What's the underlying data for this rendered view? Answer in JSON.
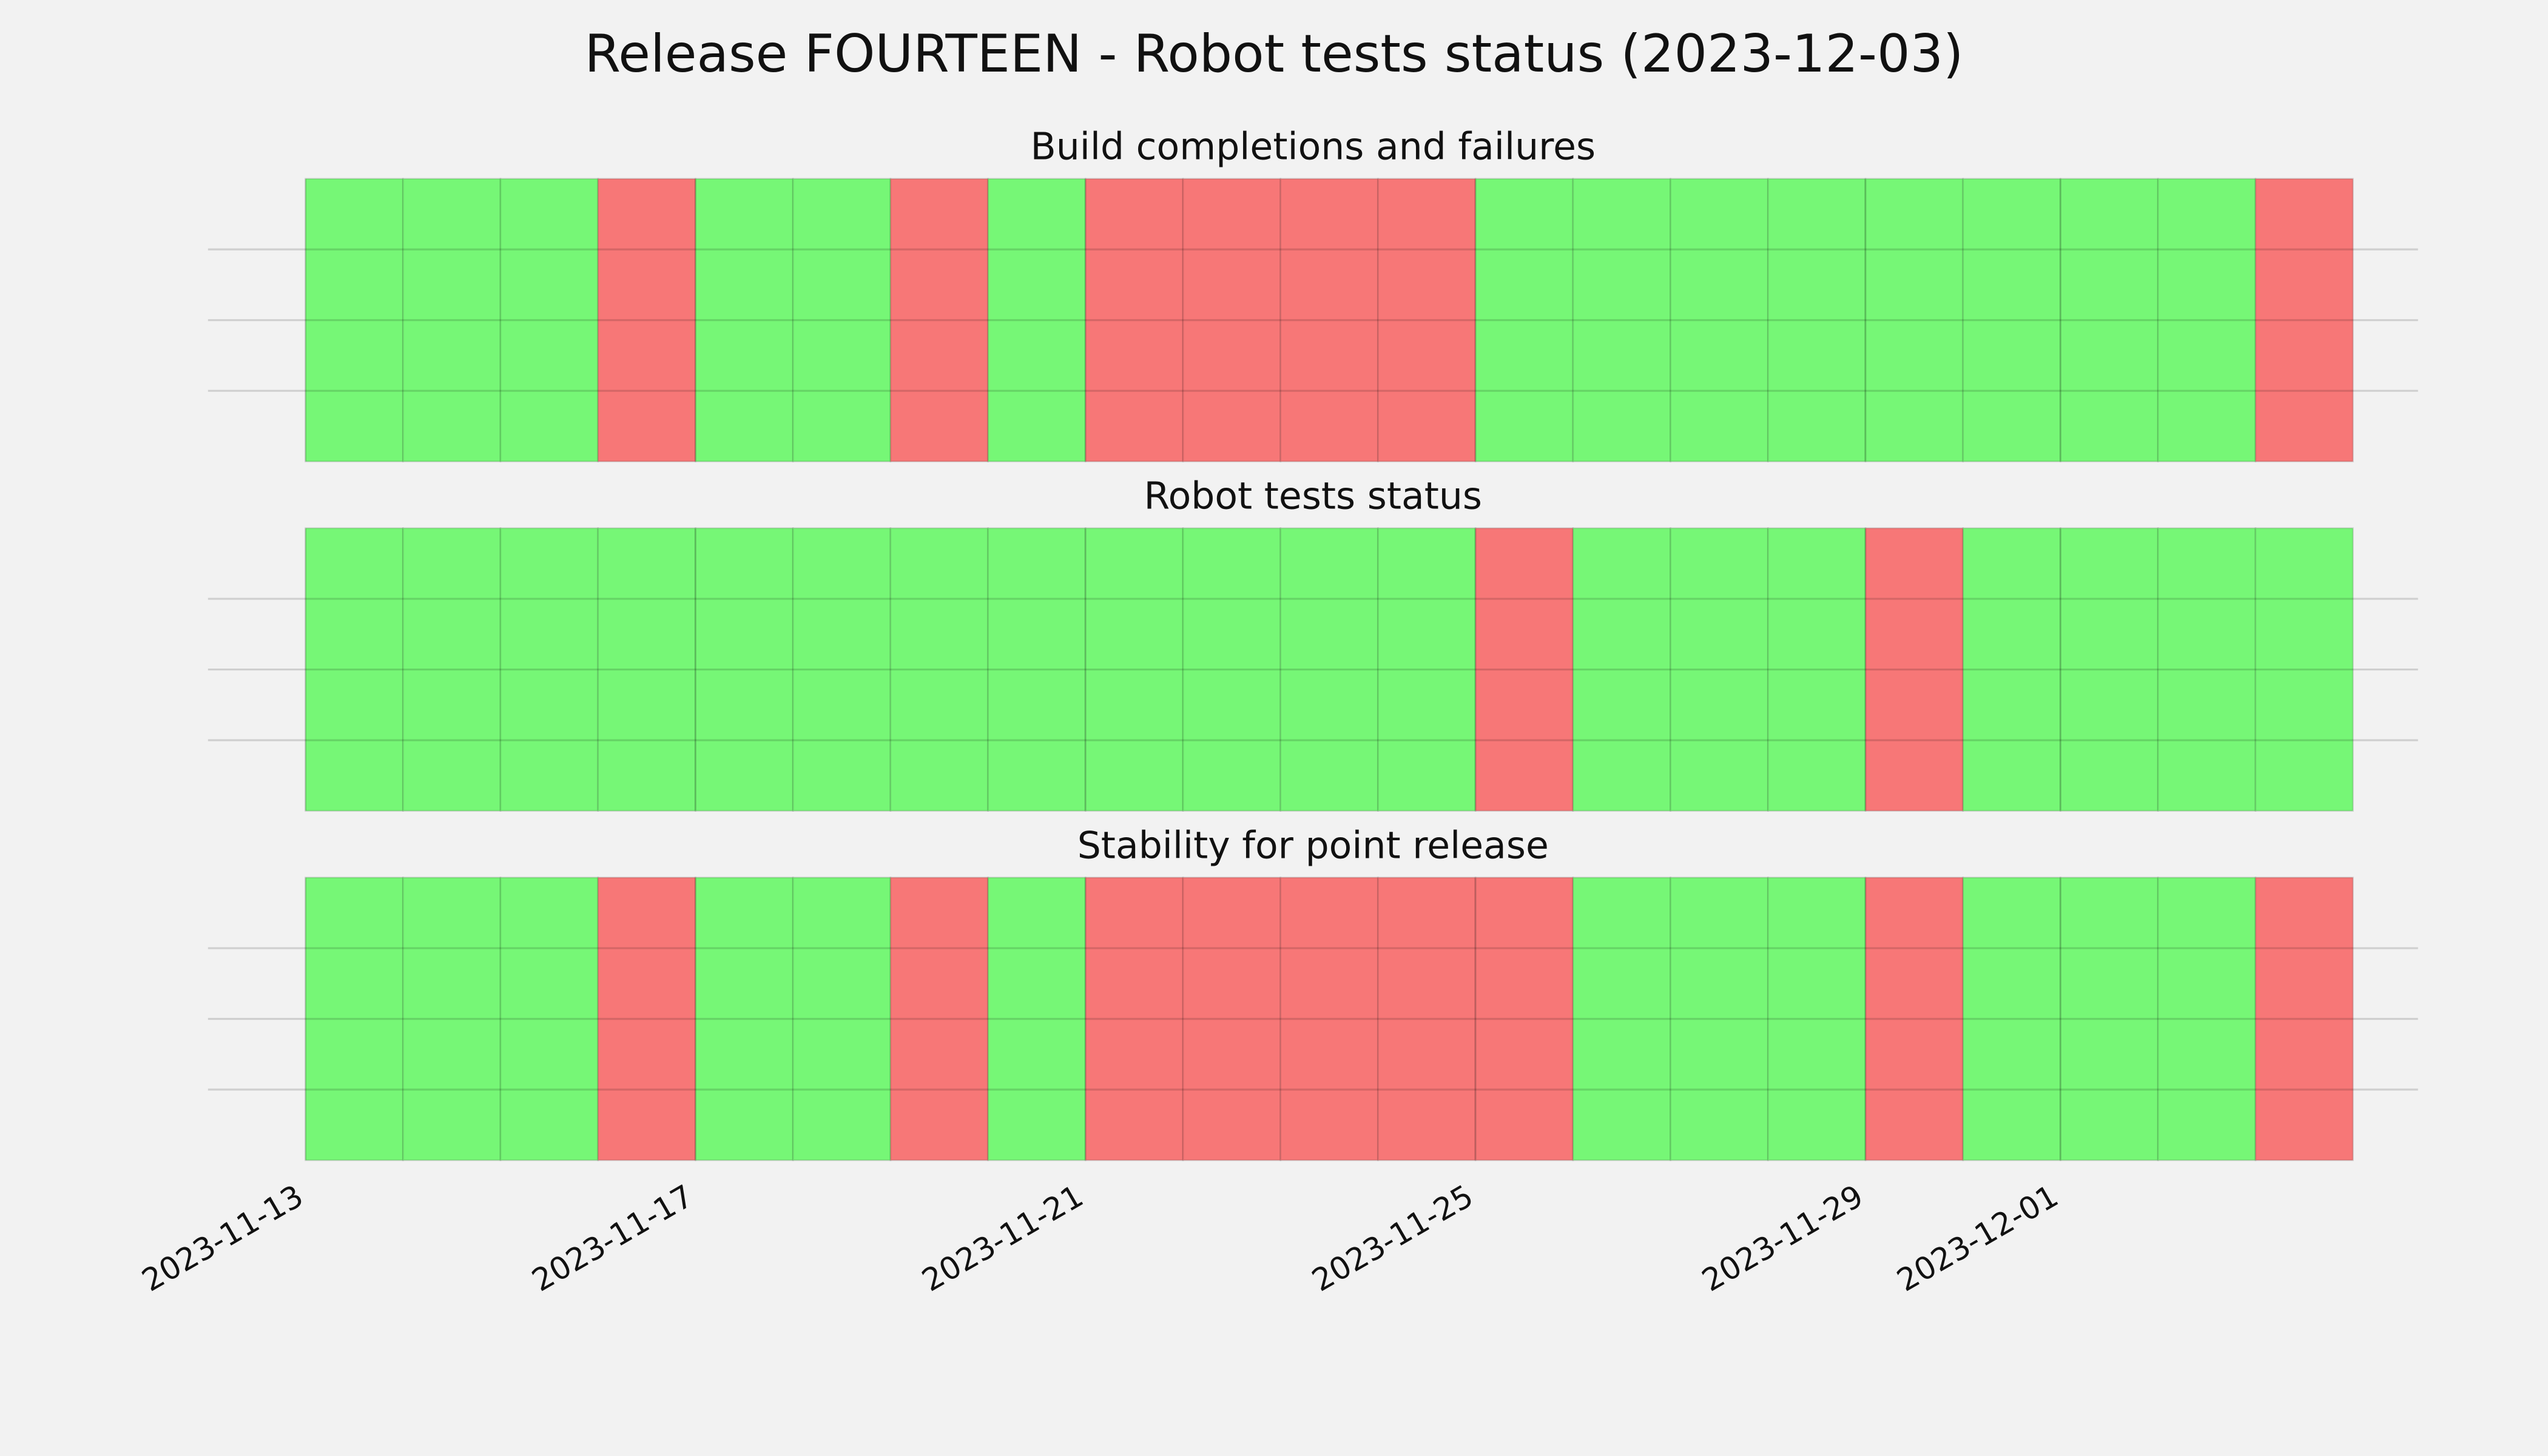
{
  "title": "Release FOURTEEN - Robot tests status (2023-12-03)",
  "chart_data": [
    {
      "type": "timeline",
      "title": "Build completions and failures",
      "x": [
        "2023-11-13",
        "2023-11-14",
        "2023-11-15",
        "2023-11-16",
        "2023-11-17",
        "2023-11-18",
        "2023-11-19",
        "2023-11-20",
        "2023-11-21",
        "2023-11-22",
        "2023-11-23",
        "2023-11-24",
        "2023-11-25",
        "2023-11-26",
        "2023-11-27",
        "2023-11-28",
        "2023-11-29",
        "2023-11-30",
        "2023-12-01",
        "2023-12-02",
        "2023-12-03"
      ],
      "values": [
        1,
        1,
        1,
        0,
        1,
        1,
        0,
        1,
        0,
        0,
        0,
        0,
        1,
        1,
        1,
        1,
        1,
        1,
        1,
        1,
        0
      ],
      "colors": [
        "#f77777",
        "#76f776"
      ],
      "xlim": [
        "2023-11-12",
        "2023-12-05"
      ],
      "ylim": [
        0,
        1
      ],
      "yticks": [
        0.25,
        0.5,
        0.75
      ],
      "xticks": [
        "2023-11-13",
        "2023-11-17",
        "2023-11-21",
        "2023-11-25",
        "2023-11-29",
        "2023-12-01"
      ],
      "grid": true
    },
    {
      "type": "timeline",
      "title": "Robot tests status",
      "x": [
        "2023-11-13",
        "2023-11-14",
        "2023-11-15",
        "2023-11-16",
        "2023-11-17",
        "2023-11-18",
        "2023-11-19",
        "2023-11-20",
        "2023-11-21",
        "2023-11-22",
        "2023-11-23",
        "2023-11-24",
        "2023-11-25",
        "2023-11-26",
        "2023-11-27",
        "2023-11-28",
        "2023-11-29",
        "2023-11-30",
        "2023-12-01",
        "2023-12-02",
        "2023-12-03"
      ],
      "values": [
        1,
        1,
        1,
        1,
        1,
        1,
        1,
        1,
        1,
        1,
        1,
        1,
        0,
        1,
        1,
        1,
        0,
        1,
        1,
        1,
        1
      ],
      "colors": [
        "#f77777",
        "#76f776"
      ],
      "xlim": [
        "2023-11-12",
        "2023-12-05"
      ],
      "ylim": [
        0,
        1
      ],
      "yticks": [
        0.25,
        0.5,
        0.75
      ],
      "xticks": [
        "2023-11-13",
        "2023-11-17",
        "2023-11-21",
        "2023-11-25",
        "2023-11-29",
        "2023-12-01"
      ],
      "grid": true
    },
    {
      "type": "timeline",
      "title": "Stability for point release",
      "x": [
        "2023-11-13",
        "2023-11-14",
        "2023-11-15",
        "2023-11-16",
        "2023-11-17",
        "2023-11-18",
        "2023-11-19",
        "2023-11-20",
        "2023-11-21",
        "2023-11-22",
        "2023-11-23",
        "2023-11-24",
        "2023-11-25",
        "2023-11-26",
        "2023-11-27",
        "2023-11-28",
        "2023-11-29",
        "2023-11-30",
        "2023-12-01",
        "2023-12-02",
        "2023-12-03"
      ],
      "values": [
        1,
        1,
        1,
        0,
        1,
        1,
        0,
        1,
        0,
        0,
        0,
        0,
        0,
        1,
        1,
        1,
        0,
        1,
        1,
        1,
        0
      ],
      "colors": [
        "#f77777",
        "#76f776"
      ],
      "xlim": [
        "2023-11-12",
        "2023-12-05"
      ],
      "ylim": [
        0,
        1
      ],
      "yticks": [
        0.25,
        0.5,
        0.75
      ],
      "xticks": [
        "2023-11-13",
        "2023-11-17",
        "2023-11-21",
        "2023-11-25",
        "2023-11-29",
        "2023-12-01"
      ],
      "grid": true,
      "show_xtick_labels": true
    }
  ]
}
